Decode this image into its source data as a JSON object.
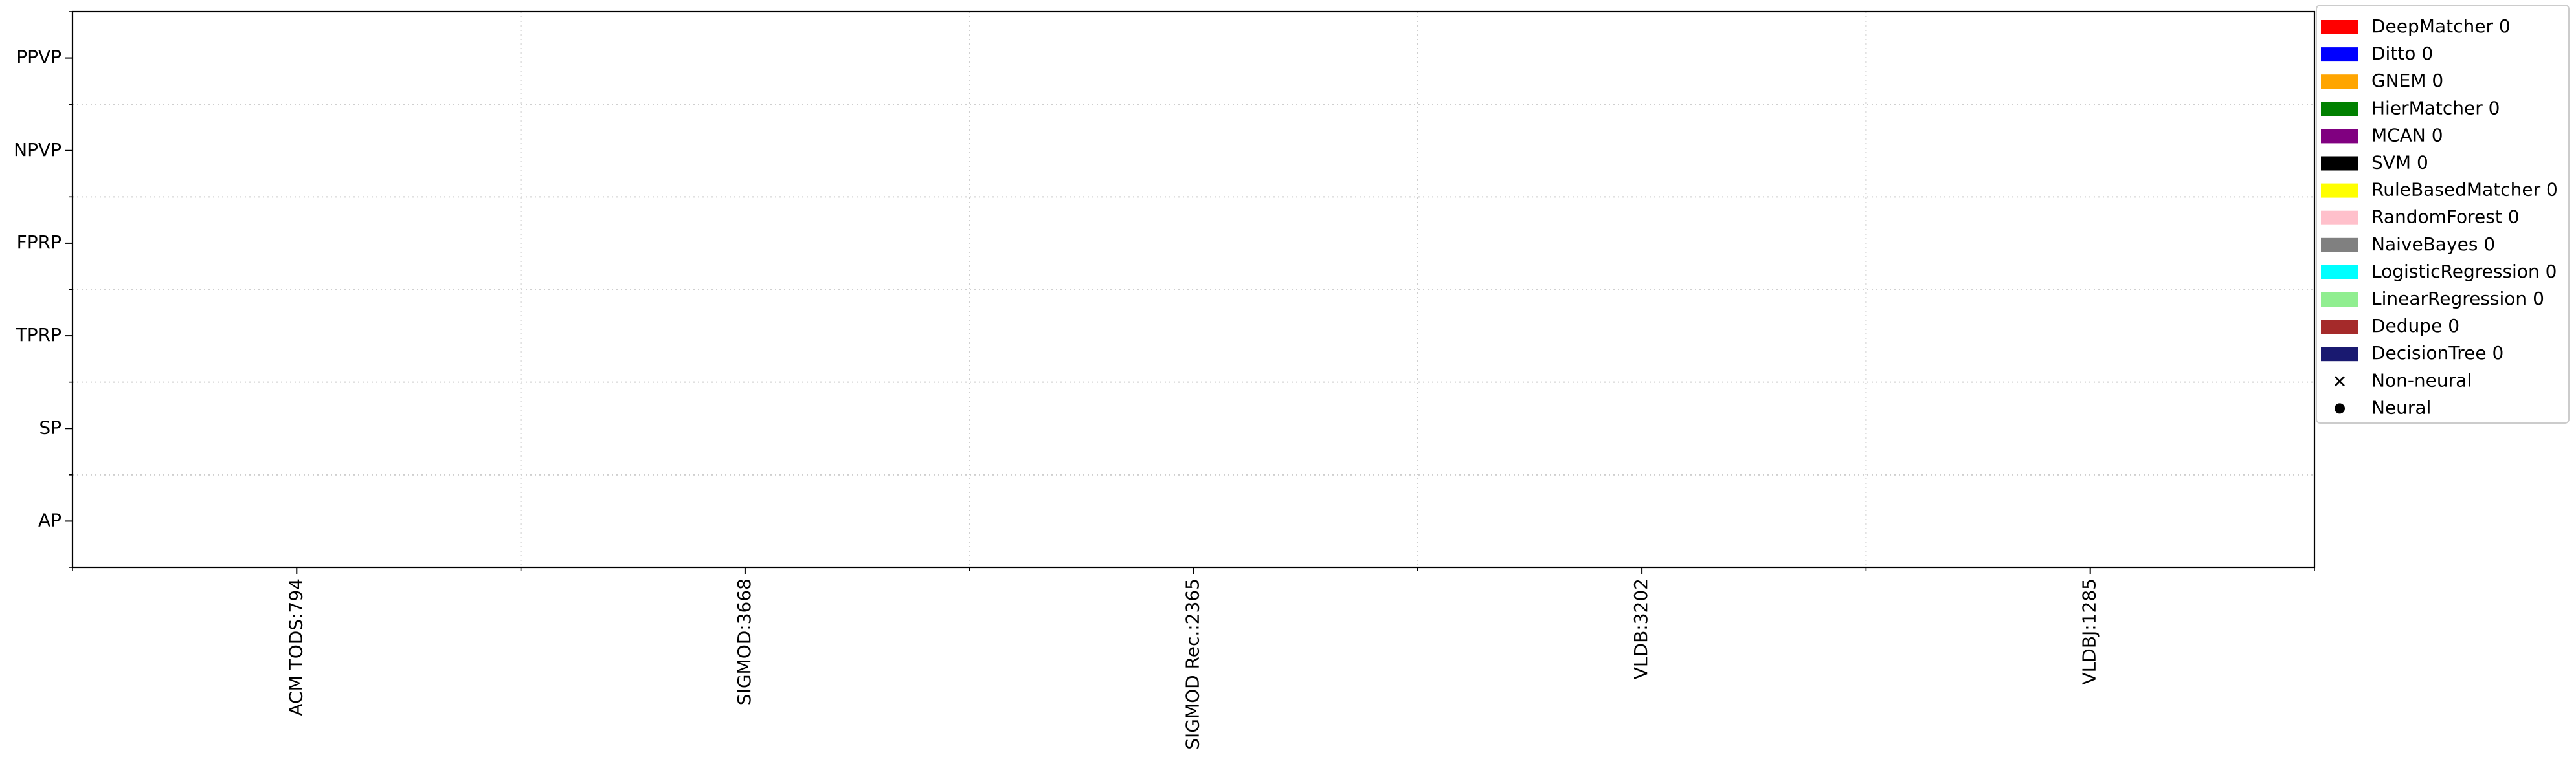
{
  "chart_data": {
    "type": "scatter",
    "title": "",
    "xlabel": "",
    "ylabel": "",
    "x_categories": [
      "ACM TODS:794",
      "SIGMOD:3668",
      "SIGMOD Rec.:2365",
      "VLDB:3202",
      "VLDBJ:1285"
    ],
    "y_categories": [
      "AP",
      "SP",
      "TPRP",
      "FPRP",
      "NPVP",
      "PPVP"
    ],
    "grid": true,
    "grid_style": "dotted",
    "legend_placement": "top-right, outside plot",
    "legend": {
      "series": [
        {
          "label": "DeepMatcher 0",
          "color": "#ff0000"
        },
        {
          "label": "Ditto 0",
          "color": "#0000ff"
        },
        {
          "label": "GNEM 0",
          "color": "#ffa500"
        },
        {
          "label": "HierMatcher 0",
          "color": "#008000"
        },
        {
          "label": "MCAN 0",
          "color": "#800080"
        },
        {
          "label": "SVM 0",
          "color": "#000000"
        },
        {
          "label": "RuleBasedMatcher 0",
          "color": "#ffff00"
        },
        {
          "label": "RandomForest 0",
          "color": "#ffc0cb"
        },
        {
          "label": "NaiveBayes 0",
          "color": "#808080"
        },
        {
          "label": "LogisticRegression 0",
          "color": "#00ffff"
        },
        {
          "label": "LinearRegression 0",
          "color": "#90ee90"
        },
        {
          "label": "Dedupe 0",
          "color": "#a52a2a"
        },
        {
          "label": "DecisionTree 0",
          "color": "#191970"
        }
      ],
      "markers": [
        {
          "label": "Non-neural",
          "marker": "x"
        },
        {
          "label": "Neural",
          "marker": "o"
        }
      ]
    },
    "series": []
  }
}
